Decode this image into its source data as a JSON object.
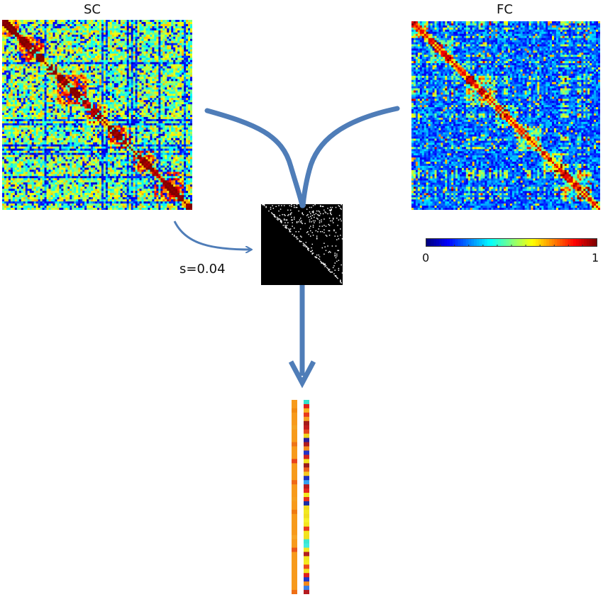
{
  "titles": {
    "sc": "SC",
    "fc": "FC"
  },
  "parameter": {
    "text": "s=0.04"
  },
  "colorbar": {
    "min_label": "0",
    "max_label": "1",
    "colormap": "jet"
  },
  "colors": {
    "arrow": "#4f7db8",
    "mask_bg": "#000000",
    "mask_fg": "#ffffff"
  },
  "vectors": {
    "left": [
      "#f79a1b",
      "#f79a1b",
      "#f28a10",
      "#f79a1b",
      "#f79a1b",
      "#f79a1b",
      "#f4a423",
      "#f79a1b",
      "#f79a1b",
      "#f79a1b",
      "#ee7418",
      "#f79a1b",
      "#f79a1b",
      "#f79a1b",
      "#e8421b",
      "#f79a1b",
      "#f79a1b",
      "#f79a1b",
      "#f79a1b",
      "#f06a16",
      "#f79a1b",
      "#f79a1b",
      "#f79a1b",
      "#f5a01f",
      "#f79a1b",
      "#f79a1b",
      "#ef7a12",
      "#f79a1b",
      "#f79a1b",
      "#f79a1b",
      "#f79a1b",
      "#f79a1b",
      "#f7a626",
      "#f79a1b",
      "#f79a1b",
      "#e9541a",
      "#f79a1b",
      "#f79a1b",
      "#f79a1b",
      "#f79a1b",
      "#f79a1b",
      "#f79a1b",
      "#f79a1b",
      "#f79a1b",
      "#f79a1b",
      "#ef6f15"
    ],
    "right": [
      "#35e3cf",
      "#e2231c",
      "#f7b21f",
      "#e83a1d",
      "#f5a021",
      "#a31a1a",
      "#c21a1c",
      "#e3451c",
      "#f0d61f",
      "#2a1f9b",
      "#b01b21",
      "#f28d1c",
      "#2233c8",
      "#d2241d",
      "#f2e21e",
      "#9a1c1e",
      "#eb5f1d",
      "#f6c720",
      "#1f2fc0",
      "#35a0ef",
      "#b81b1d",
      "#e5281d",
      "#f2ea20",
      "#e4301c",
      "#1a2ea6",
      "#f0da1e",
      "#f2e81f",
      "#f0de22",
      "#f5f02a",
      "#f3e61e",
      "#e83b1d",
      "#f2e41e",
      "#f1e01f",
      "#3ae7d1",
      "#42ebe0",
      "#f2e620",
      "#b21d20",
      "#f1e51e",
      "#f4e91f",
      "#eb4a1d",
      "#f0e21e",
      "#e11f1c",
      "#1f36c6",
      "#f38a1b",
      "#3a7fe6",
      "#b51b20"
    ]
  }
}
